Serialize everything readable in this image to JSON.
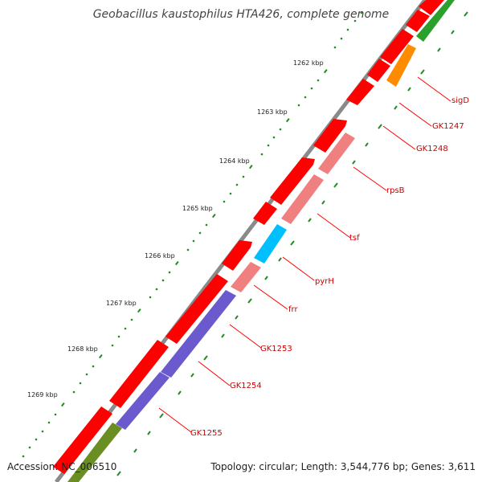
{
  "title": "Geobacillus kaustophilus HTA426, complete genome",
  "footer": {
    "accession": "Accession: NC_006510",
    "topology": "Topology: circular; Length: 3,544,776 bp; Genes: 3,611"
  },
  "ticks": [
    "1262 kbp",
    "1263 kbp",
    "1264 kbp",
    "1265 kbp",
    "1266 kbp",
    "1267 kbp",
    "1268 kbp",
    "1269 kbp"
  ],
  "genes": [
    "sigD",
    "GK1247",
    "GK1248",
    "rpsB",
    "tsf",
    "pyrH",
    "frr",
    "GK1253",
    "GK1254",
    "GK1255"
  ],
  "colors": {
    "backbone": "#8a8a8a",
    "cds_red": "#ff0000",
    "rpsB_tsf_frr": "#f08080",
    "pyrH": "#00bfff",
    "gk1253_gk1255": "#6a5acd",
    "bottom_olive": "#6b8e23",
    "sigD_orange": "#ff8c00",
    "top_green": "#2ca02c",
    "ticks_green": "#228b22",
    "label_red": "#cc0000"
  }
}
